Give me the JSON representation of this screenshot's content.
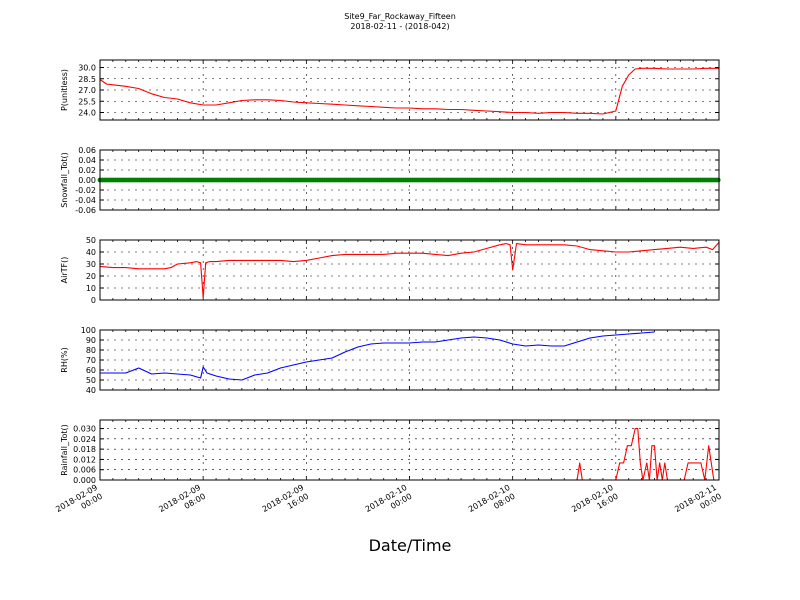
{
  "title_line1": "Site9_Far_Rockaway_Fifteen",
  "title_line2": "2018-02-11 - (2018-042)",
  "xlabel": "Date/Time",
  "x_ticks": [
    {
      "line1": "2018-02-09",
      "line2": "00:00"
    },
    {
      "line1": "2018-02-09",
      "line2": "08:00"
    },
    {
      "line1": "2018-02-09",
      "line2": "16:00"
    },
    {
      "line1": "2018-02-10",
      "line2": "00:00"
    },
    {
      "line1": "2018-02-10",
      "line2": "08:00"
    },
    {
      "line1": "2018-02-10",
      "line2": "16:00"
    },
    {
      "line1": "2018-02-11",
      "line2": "00:00"
    }
  ],
  "chart_data": [
    {
      "type": "line",
      "ylabel": "P(unitless)",
      "ylim": [
        23.0,
        31.0
      ],
      "yticks": [
        "24.0",
        "25.5",
        "27.0",
        "28.5",
        "30.0"
      ],
      "grid": true,
      "series": [
        {
          "color": "#ff0000",
          "x_hours": [
            0,
            0.5,
            1,
            2,
            3,
            4,
            5,
            6,
            7,
            8,
            9,
            10,
            11,
            12,
            13,
            14,
            15,
            16,
            17,
            18,
            19,
            20,
            21,
            22,
            23,
            24,
            25,
            26,
            27,
            28,
            29,
            30,
            31,
            32,
            33,
            34,
            35,
            36,
            37,
            38,
            39,
            40,
            40.5,
            41,
            41.5,
            42,
            43,
            44,
            45,
            46,
            47,
            48
          ],
          "values": [
            28.4,
            27.8,
            27.7,
            27.5,
            27.2,
            26.5,
            26.0,
            25.8,
            25.3,
            25.0,
            25.0,
            25.3,
            25.6,
            25.7,
            25.7,
            25.6,
            25.4,
            25.3,
            25.2,
            25.1,
            25.0,
            24.9,
            24.8,
            24.7,
            24.6,
            24.6,
            24.5,
            24.5,
            24.4,
            24.4,
            24.3,
            24.2,
            24.1,
            24.0,
            24.0,
            23.9,
            24.0,
            24.0,
            23.9,
            23.9,
            23.8,
            24.2,
            27.5,
            29.0,
            29.8,
            29.9,
            29.9,
            29.8,
            29.8,
            29.8,
            29.9,
            29.9
          ]
        }
      ]
    },
    {
      "type": "scatter",
      "ylabel": "Snowfall_Tot()",
      "ylim": [
        -0.06,
        0.06
      ],
      "yticks": [
        "-0.06",
        "-0.04",
        "-0.02",
        "0.00",
        "0.02",
        "0.04",
        "0.06"
      ],
      "grid": true,
      "series": [
        {
          "color": "#008000",
          "x_hours": [
            0,
            48
          ],
          "values": [
            0.0,
            0.0
          ],
          "note_style": "dense markers along zero"
        }
      ]
    },
    {
      "type": "line",
      "ylabel": "AirTF()",
      "ylim": [
        0,
        50
      ],
      "yticks": [
        "0",
        "10",
        "20",
        "30",
        "40",
        "50"
      ],
      "grid": true,
      "series": [
        {
          "color": "#ff0000",
          "x_hours": [
            0,
            1,
            2,
            3,
            4,
            5,
            5.5,
            6,
            7,
            7.5,
            7.8,
            8.0,
            8.2,
            8.5,
            9,
            10,
            11,
            12,
            13,
            14,
            15,
            16,
            17,
            18,
            19,
            20,
            21,
            22,
            23,
            24,
            25,
            26,
            27,
            28,
            29,
            30,
            31,
            31.5,
            31.8,
            32.0,
            32.3,
            33,
            34,
            35,
            36,
            37,
            38,
            39,
            40,
            41,
            42,
            43,
            44,
            45,
            46,
            47,
            47.5,
            48
          ],
          "values": [
            28,
            27,
            27,
            26,
            26,
            26,
            27,
            30,
            31,
            32,
            31,
            2,
            31,
            32,
            32,
            33,
            33,
            33,
            33,
            33,
            32,
            33,
            35,
            37,
            38,
            38,
            38,
            38,
            39,
            39,
            39,
            38,
            37,
            39,
            40,
            43,
            46,
            47,
            46,
            25,
            47,
            46,
            46,
            46,
            46,
            45,
            42,
            41,
            40,
            40,
            41,
            42,
            43,
            44,
            43,
            44,
            42,
            48
          ]
        }
      ]
    },
    {
      "type": "line",
      "ylabel": "RH(%)",
      "ylim": [
        40,
        100
      ],
      "yticks": [
        "40",
        "50",
        "60",
        "70",
        "80",
        "90",
        "100"
      ],
      "grid": true,
      "series": [
        {
          "color": "#0000ff",
          "x_hours": [
            0,
            1,
            2,
            3,
            4,
            5,
            6,
            7,
            7.8,
            8.0,
            8.3,
            9,
            10,
            11,
            12,
            13,
            14,
            15,
            16,
            17,
            18,
            19,
            20,
            21,
            22,
            23,
            24,
            25,
            26,
            27,
            28,
            29,
            30,
            31,
            32,
            33,
            34,
            35,
            36,
            37,
            38,
            39,
            40,
            41,
            42,
            43
          ],
          "values": [
            57,
            57,
            57,
            62,
            56,
            57,
            56,
            55,
            52,
            63,
            57,
            54,
            51,
            50,
            55,
            57,
            62,
            65,
            68,
            70,
            72,
            78,
            83,
            86,
            87,
            87,
            87,
            88,
            88,
            90,
            92,
            93,
            92,
            90,
            86,
            84,
            85,
            84,
            84,
            88,
            92,
            94,
            95,
            96,
            97,
            98
          ]
        }
      ]
    },
    {
      "type": "line",
      "ylabel": "Rainfall_Tot()",
      "ylim": [
        0,
        0.035
      ],
      "yticks": [
        "0.000",
        "0.006",
        "0.012",
        "0.018",
        "0.024",
        "0.030"
      ],
      "grid": true,
      "series": [
        {
          "color": "#ff0000",
          "x_hours": [
            0,
            37.0,
            37.2,
            37.4,
            40.0,
            40.3,
            40.6,
            40.9,
            41.2,
            41.5,
            41.7,
            41.9,
            42.1,
            42.4,
            42.6,
            42.8,
            43.0,
            43.2,
            43.4,
            43.6,
            43.8,
            44.0,
            45.0,
            45.3,
            45.6,
            46.0,
            46.3,
            46.6,
            46.9,
            47.2,
            47.6,
            48.0
          ],
          "values": [
            0,
            0,
            0.01,
            0,
            0,
            0.01,
            0.01,
            0.02,
            0.02,
            0.03,
            0.03,
            0.01,
            0,
            0.01,
            0,
            0.02,
            0.02,
            0,
            0.01,
            0,
            0.01,
            0,
            0,
            0,
            0.01,
            0.01,
            0.01,
            0.01,
            0,
            0.02,
            0,
            0
          ]
        }
      ]
    }
  ]
}
